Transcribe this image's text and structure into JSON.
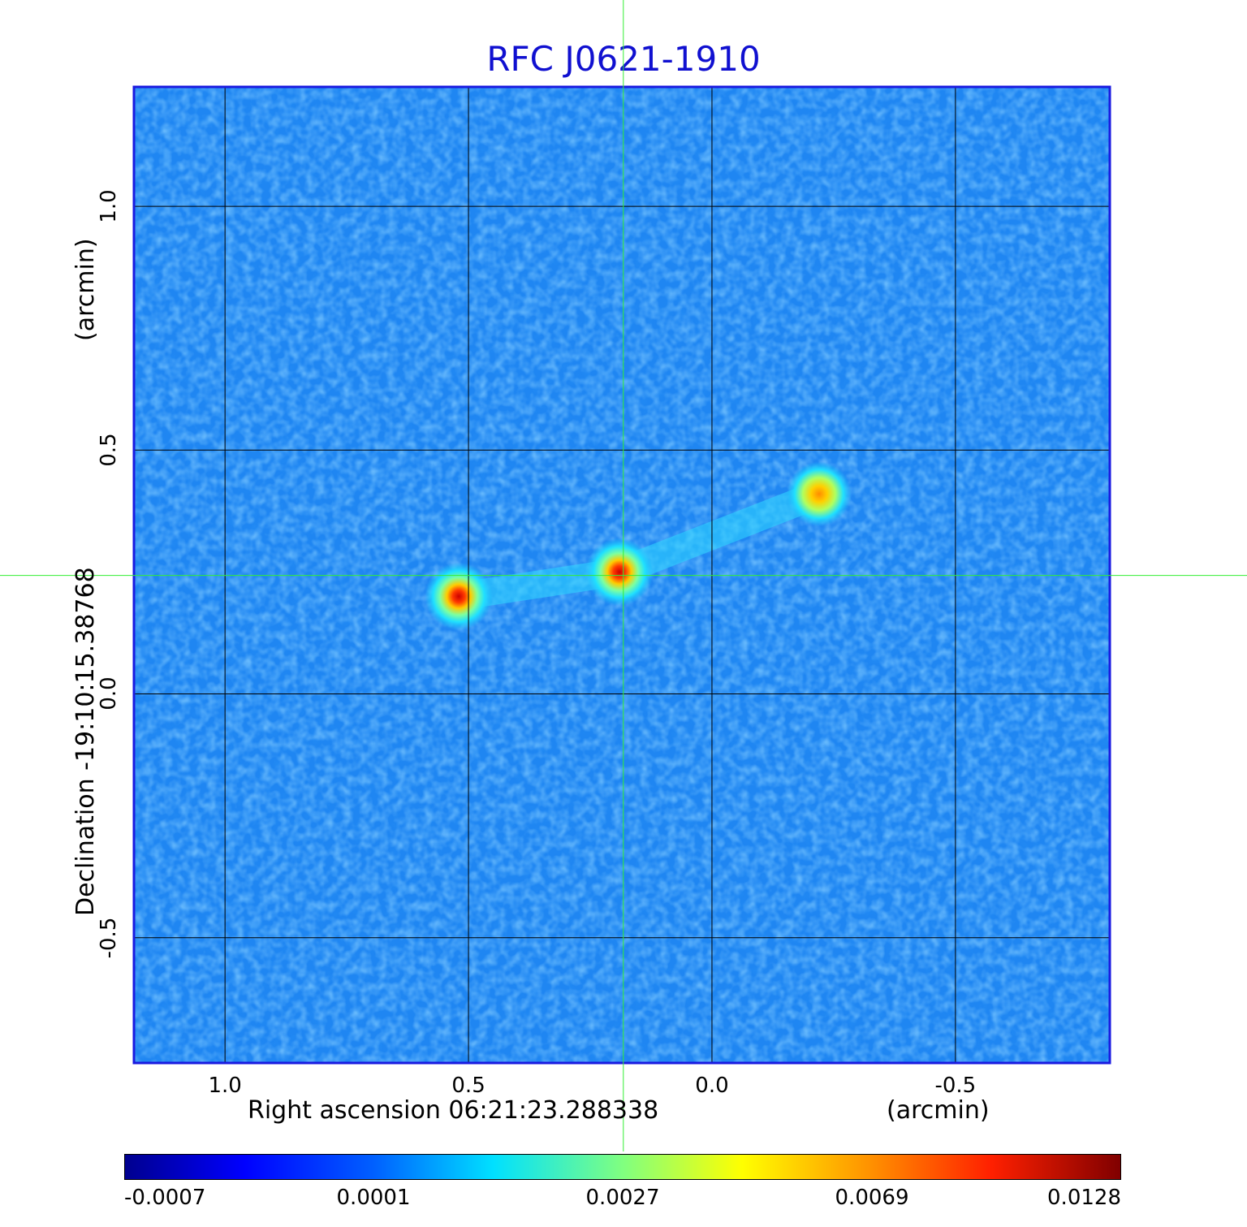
{
  "chart_data": {
    "type": "heatmap",
    "title": "RFC J0621-1910",
    "xlabel": "Right ascension  06:21:23.288338",
    "xunit": "(arcmin)",
    "ylabel": "Declination  -19:10:15.38768",
    "yunit": "(arcmin)",
    "xlim": [
      1.187,
      -0.817
    ],
    "ylim": [
      -0.757,
      1.245
    ],
    "xticks": [
      {
        "value": 1.0,
        "label": "1.0"
      },
      {
        "value": 0.5,
        "label": "0.5"
      },
      {
        "value": 0.0,
        "label": "0.0"
      },
      {
        "value": -0.5,
        "label": "-0.5"
      }
    ],
    "yticks": [
      {
        "value": 1.0,
        "label": "1.0"
      },
      {
        "value": 0.5,
        "label": "0.5"
      },
      {
        "value": 0.0,
        "label": "0.0"
      },
      {
        "value": -0.5,
        "label": "-0.5"
      }
    ],
    "grid": true,
    "crosshair": {
      "x": 0.182,
      "y": 0.243
    },
    "sources": [
      {
        "x": 0.52,
        "y": 0.2,
        "peak": 0.0128
      },
      {
        "x": 0.19,
        "y": 0.25,
        "peak": 0.0128
      },
      {
        "x": -0.22,
        "y": 0.41,
        "peak": 0.0069
      }
    ],
    "colorbar": {
      "colormap": "jet",
      "ticks": [
        "-0.0007",
        "0.0001",
        "0.0027",
        "0.0069",
        "0.0128"
      ]
    }
  }
}
